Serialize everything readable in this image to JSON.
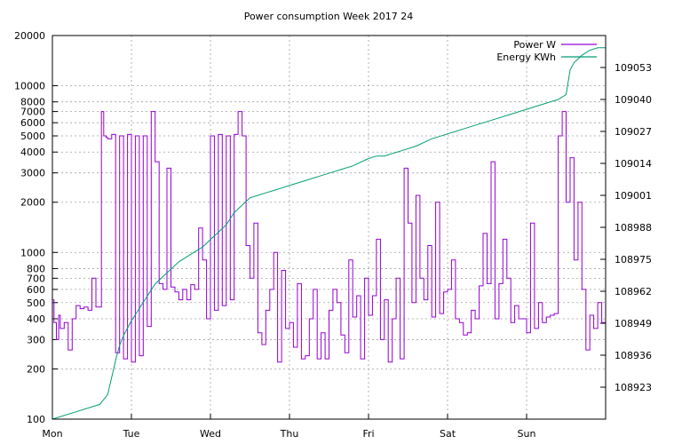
{
  "chart_data": {
    "type": "line",
    "title": "Power consumption Week 2017 24",
    "xlabel": "",
    "ylabel": "",
    "x_ticks": [
      "Mon",
      "Tue",
      "Wed",
      "Thu",
      "Fri",
      "Sat",
      "Sun"
    ],
    "xlim_days": [
      0,
      7
    ],
    "y_scale": "log",
    "ylim": [
      100,
      20000
    ],
    "y_ticks": [
      "100",
      "200",
      "300",
      "400",
      "500",
      "600",
      "700",
      "800",
      "1000",
      "2000",
      "3000",
      "4000",
      "5000",
      "6000",
      "7000",
      "8000",
      "10000",
      "20000"
    ],
    "y2lim": [
      108910,
      109066
    ],
    "y2_ticks": [
      "108923",
      "108936",
      "108949",
      "108962",
      "108975",
      "108988",
      "109001",
      "109014",
      "109027",
      "109040",
      "109053"
    ],
    "grid": true,
    "legend_position": "top-right",
    "series": [
      {
        "name": "Power W",
        "color": "#9400d3",
        "axis": "y",
        "x": [
          0.0,
          0.02,
          0.05,
          0.08,
          0.1,
          0.15,
          0.2,
          0.25,
          0.3,
          0.35,
          0.4,
          0.45,
          0.5,
          0.55,
          0.6,
          0.62,
          0.65,
          0.68,
          0.7,
          0.75,
          0.8,
          0.85,
          0.9,
          0.95,
          1.0,
          1.05,
          1.1,
          1.15,
          1.2,
          1.25,
          1.3,
          1.35,
          1.4,
          1.45,
          1.5,
          1.55,
          1.6,
          1.65,
          1.7,
          1.75,
          1.8,
          1.85,
          1.9,
          1.95,
          2.0,
          2.05,
          2.1,
          2.15,
          2.2,
          2.25,
          2.3,
          2.35,
          2.4,
          2.45,
          2.5,
          2.55,
          2.6,
          2.65,
          2.7,
          2.75,
          2.8,
          2.85,
          2.9,
          2.95,
          3.0,
          3.05,
          3.1,
          3.15,
          3.2,
          3.25,
          3.3,
          3.35,
          3.4,
          3.45,
          3.5,
          3.55,
          3.6,
          3.65,
          3.7,
          3.75,
          3.8,
          3.85,
          3.9,
          3.95,
          4.0,
          4.05,
          4.1,
          4.15,
          4.2,
          4.25,
          4.3,
          4.35,
          4.4,
          4.45,
          4.5,
          4.55,
          4.6,
          4.65,
          4.7,
          4.75,
          4.8,
          4.85,
          4.9,
          4.95,
          5.0,
          5.05,
          5.1,
          5.15,
          5.2,
          5.25,
          5.3,
          5.35,
          5.4,
          5.45,
          5.5,
          5.55,
          5.6,
          5.65,
          5.7,
          5.75,
          5.8,
          5.85,
          5.9,
          5.95,
          6.0,
          6.05,
          6.1,
          6.15,
          6.2,
          6.25,
          6.3,
          6.35,
          6.4,
          6.45,
          6.5,
          6.55,
          6.6,
          6.65,
          6.7,
          6.75,
          6.8,
          6.85,
          6.9,
          6.95,
          7.0
        ],
        "values": [
          520,
          380,
          300,
          420,
          350,
          380,
          260,
          400,
          480,
          460,
          470,
          450,
          700,
          470,
          470,
          7000,
          5000,
          4900,
          4800,
          5100,
          250,
          5000,
          230,
          5100,
          220,
          5000,
          240,
          5000,
          360,
          7000,
          3500,
          650,
          600,
          3200,
          620,
          580,
          520,
          600,
          520,
          640,
          600,
          1400,
          900,
          400,
          5000,
          450,
          5100,
          480,
          5000,
          520,
          5100,
          7000,
          5000,
          1100,
          700,
          1500,
          330,
          280,
          450,
          600,
          1000,
          220,
          780,
          350,
          380,
          270,
          650,
          230,
          240,
          400,
          600,
          230,
          330,
          230,
          450,
          600,
          500,
          320,
          250,
          900,
          410,
          550,
          230,
          700,
          420,
          550,
          1200,
          300,
          520,
          220,
          400,
          700,
          230,
          3200,
          1500,
          500,
          2200,
          700,
          520,
          1100,
          410,
          2000,
          430,
          580,
          600,
          900,
          400,
          380,
          320,
          330,
          450,
          400,
          630,
          1300,
          650,
          3500,
          400,
          650,
          1200,
          700,
          380,
          480,
          400,
          400,
          330,
          1500,
          350,
          500,
          380,
          410,
          420,
          430,
          5000,
          7000,
          2000,
          3700,
          900,
          2000,
          600,
          260,
          420,
          350,
          500,
          380,
          420
        ]
      },
      {
        "name": "Energy KWh",
        "color": "#009e73",
        "axis": "y2",
        "x": [
          0.0,
          0.3,
          0.6,
          0.7,
          0.75,
          0.8,
          0.85,
          0.9,
          0.95,
          1.0,
          1.1,
          1.2,
          1.3,
          1.4,
          1.5,
          1.6,
          1.7,
          1.8,
          1.9,
          2.0,
          2.1,
          2.2,
          2.3,
          2.4,
          2.5,
          2.6,
          2.7,
          2.8,
          2.9,
          3.0,
          3.2,
          3.4,
          3.6,
          3.8,
          4.0,
          4.1,
          4.2,
          4.4,
          4.6,
          4.8,
          5.0,
          5.2,
          5.4,
          5.6,
          5.8,
          6.0,
          6.2,
          6.4,
          6.5,
          6.55,
          6.6,
          6.7,
          6.8,
          6.9,
          7.0
        ],
        "values": [
          108910,
          108913,
          108916,
          108920,
          108927,
          108934,
          108940,
          108944,
          108947,
          108950,
          108955,
          108960,
          108965,
          108968,
          108971,
          108974,
          108976,
          108978,
          108980,
          108983,
          108986,
          108989,
          108994,
          108997,
          109000,
          109001,
          109002,
          109003,
          109004,
          109005,
          109007,
          109009,
          109011,
          109013,
          109016,
          109017,
          109017,
          109019,
          109021,
          109024,
          109026,
          109028,
          109030,
          109032,
          109034,
          109036,
          109038,
          109040,
          109042,
          109052,
          109055,
          109058,
          109060,
          109061,
          109061
        ]
      }
    ]
  }
}
